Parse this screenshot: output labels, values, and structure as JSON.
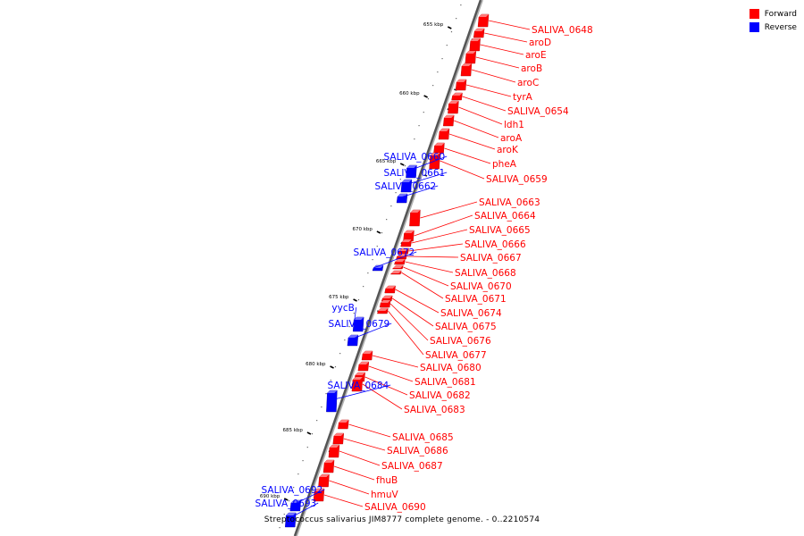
{
  "legend": {
    "forward": {
      "label": "Forward",
      "color": "#ff0000"
    },
    "reverse": {
      "label": "Reverse",
      "color": "#0000ff"
    }
  },
  "caption": "Streptococcus salivarius JIM8777 complete genome. - 0..2210574",
  "ticks": [
    "655 kbp",
    "660 kbp",
    "665 kbp",
    "670 kbp",
    "675 kbp",
    "680 kbp",
    "685 kbp",
    "690 kbp"
  ],
  "genes": [
    {
      "name": "SALIVA_0648",
      "strand": "forward"
    },
    {
      "name": "aroD",
      "strand": "forward"
    },
    {
      "name": "aroE",
      "strand": "forward"
    },
    {
      "name": "aroB",
      "strand": "forward"
    },
    {
      "name": "aroC",
      "strand": "forward"
    },
    {
      "name": "tyrA",
      "strand": "forward"
    },
    {
      "name": "SALIVA_0654",
      "strand": "forward"
    },
    {
      "name": "ldh1",
      "strand": "forward"
    },
    {
      "name": "aroA",
      "strand": "forward"
    },
    {
      "name": "aroK",
      "strand": "forward"
    },
    {
      "name": "pheA",
      "strand": "forward"
    },
    {
      "name": "SALIVA_0659",
      "strand": "forward"
    },
    {
      "name": "SALIVA_0660",
      "strand": "reverse"
    },
    {
      "name": "SALIVA_0661",
      "strand": "reverse"
    },
    {
      "name": "SALIVA_0662",
      "strand": "reverse"
    },
    {
      "name": "SALIVA_0663",
      "strand": "forward"
    },
    {
      "name": "SALIVA_0664",
      "strand": "forward"
    },
    {
      "name": "SALIVA_0665",
      "strand": "forward"
    },
    {
      "name": "SALIVA_0666",
      "strand": "forward"
    },
    {
      "name": "SALIVA_0667",
      "strand": "forward"
    },
    {
      "name": "SALIVA_0668",
      "strand": "forward"
    },
    {
      "name": "SALIVA_0670",
      "strand": "forward"
    },
    {
      "name": "SALIVA_0671",
      "strand": "forward"
    },
    {
      "name": "SALIVA_0672",
      "strand": "reverse"
    },
    {
      "name": "SALIVA_0674",
      "strand": "forward"
    },
    {
      "name": "SALIVA_0675",
      "strand": "forward"
    },
    {
      "name": "SALIVA_0676",
      "strand": "forward"
    },
    {
      "name": "SALIVA_0677",
      "strand": "forward"
    },
    {
      "name": "yycB",
      "strand": "reverse"
    },
    {
      "name": "SALIVA_0679",
      "strand": "reverse"
    },
    {
      "name": "SALIVA_0680",
      "strand": "forward"
    },
    {
      "name": "SALIVA_0681",
      "strand": "forward"
    },
    {
      "name": "SALIVA_0682",
      "strand": "forward"
    },
    {
      "name": "SALIVA_0683",
      "strand": "forward"
    },
    {
      "name": "SALIVA_0684",
      "strand": "reverse"
    },
    {
      "name": "SALIVA_0685",
      "strand": "forward"
    },
    {
      "name": "SALIVA_0686",
      "strand": "forward"
    },
    {
      "name": "SALIVA_0687",
      "strand": "forward"
    },
    {
      "name": "fhuB",
      "strand": "forward"
    },
    {
      "name": "hmuV",
      "strand": "forward"
    },
    {
      "name": "SALIVA_0690",
      "strand": "forward"
    },
    {
      "name": "SALIVA_0692",
      "strand": "reverse"
    },
    {
      "name": "SALIVA_0693",
      "strand": "reverse"
    }
  ]
}
